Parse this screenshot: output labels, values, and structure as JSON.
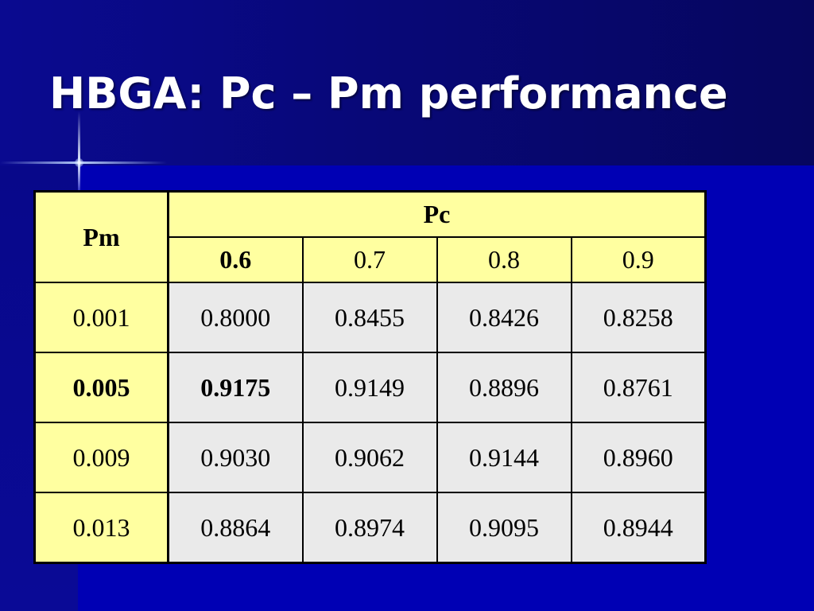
{
  "slide": {
    "title": "HBGA: Pc – Pm performance"
  },
  "table": {
    "row_header": "Pm",
    "col_group_header": "Pc",
    "columns": [
      "0.6",
      "0.7",
      "0.8",
      "0.9"
    ],
    "rows": [
      {
        "pm": "0.001",
        "values": [
          "0.8000",
          "0.8455",
          "0.8426",
          "0.8258"
        ]
      },
      {
        "pm": "0.005",
        "values": [
          "0.9175",
          "0.9149",
          "0.8896",
          "0.8761"
        ]
      },
      {
        "pm": "0.009",
        "values": [
          "0.9030",
          "0.9062",
          "0.9144",
          "0.8960"
        ]
      },
      {
        "pm": "0.013",
        "values": [
          "0.8864",
          "0.8974",
          "0.9095",
          "0.8944"
        ]
      }
    ],
    "highlighted": {
      "column": "0.6",
      "row": "0.005",
      "value": "0.9175"
    }
  },
  "colors": {
    "background": "#0000b4",
    "title_text": "#ffffff",
    "header_fill": "#ffffa0",
    "cell_fill": "#eaeaea",
    "border": "#000000"
  }
}
